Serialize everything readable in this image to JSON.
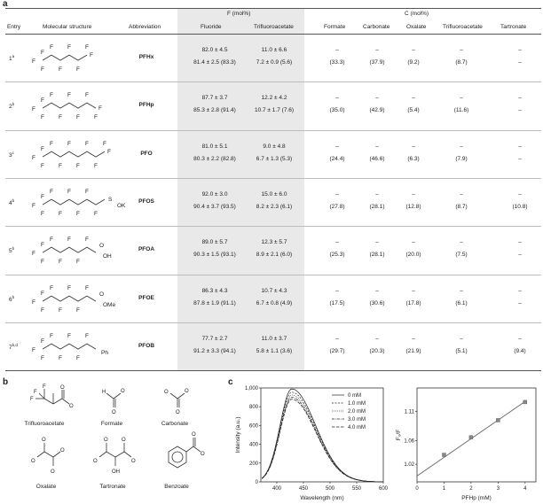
{
  "panels": {
    "a": "a",
    "b": "b",
    "c": "c"
  },
  "table": {
    "headers": {
      "entry": "Entry",
      "structure": "Molecular structure",
      "abbreviation": "Abbreviation",
      "group_f": "F (mol%)",
      "group_c": "C (mol%)",
      "f_cols": [
        "Fluoride",
        "Trifluoroacetate"
      ],
      "c_cols": [
        "Formate",
        "Carbonate",
        "Oxalate",
        "Trifluoroacetate",
        "Tartronate"
      ]
    },
    "rows": [
      {
        "entry": "1",
        "sup": "a",
        "abbr": "PFHx",
        "tail": "F",
        "chain": 6,
        "f1": [
          "82.0 ± 4.5",
          "81.4 ± 2.5 (83.3)"
        ],
        "f2": [
          "11.0 ± 6.6",
          "7.2 ± 0.9 (5.6)"
        ],
        "c": [
          [
            "–",
            "(33.3)"
          ],
          [
            "–",
            "(37.9)"
          ],
          [
            "–",
            "(9.2)"
          ],
          [
            "–",
            "(8.7)"
          ],
          [
            "–",
            "–"
          ]
        ]
      },
      {
        "entry": "2",
        "sup": "b",
        "abbr": "PFHp",
        "tail": "F",
        "chain": 7,
        "f1": [
          "87.7 ± 3.7",
          "85.3 ± 2.8 (91.4)"
        ],
        "f2": [
          "12.2 ± 4.2",
          "10.7 ± 1.7 (7.6)"
        ],
        "c": [
          [
            "–",
            "(35.0)"
          ],
          [
            "–",
            "(42.9)"
          ],
          [
            "–",
            "(5.4)"
          ],
          [
            "–",
            "(11.6)"
          ],
          [
            "–",
            "–"
          ]
        ]
      },
      {
        "entry": "3",
        "sup": "c",
        "abbr": "PFO",
        "tail": "F",
        "chain": 8,
        "f1": [
          "81.0 ± 5.1",
          "80.3 ± 2.2 (82.8)"
        ],
        "f2": [
          "9.0 ± 4.8",
          "6.7 ± 1.3 (5.3)"
        ],
        "c": [
          [
            "–",
            "(24.4)"
          ],
          [
            "–",
            "(46.6)"
          ],
          [
            "–",
            "(6.3)"
          ],
          [
            "–",
            "(7.9)"
          ],
          [
            "–",
            "–"
          ]
        ]
      },
      {
        "entry": "4",
        "sup": "b",
        "abbr": "PFOS",
        "tail": "SO3K",
        "chain": 8,
        "f1": [
          "92.0 ± 3.0",
          "90.4 ± 3.7 (93.5)"
        ],
        "f2": [
          "15.0 ± 6.0",
          "8.2 ± 2.3 (6.1)"
        ],
        "c": [
          [
            "–",
            "(27.8)"
          ],
          [
            "–",
            "(28.1)"
          ],
          [
            "–",
            "(12.8)"
          ],
          [
            "–",
            "(8.7)"
          ],
          [
            "–",
            "(10.8)"
          ]
        ]
      },
      {
        "entry": "5",
        "sup": "b",
        "abbr": "PFOA",
        "tail": "COOH",
        "chain": 7,
        "f1": [
          "89.0 ± 5.7",
          "90.3 ± 1.5 (93.1)"
        ],
        "f2": [
          "12.3 ± 5.7",
          "8.9 ± 2.1 (6.0)"
        ],
        "c": [
          [
            "–",
            "(25.3)"
          ],
          [
            "–",
            "(28.1)"
          ],
          [
            "–",
            "(20.0)"
          ],
          [
            "–",
            "(7.5)"
          ],
          [
            "–",
            "–"
          ]
        ]
      },
      {
        "entry": "6",
        "sup": "b",
        "abbr": "PFOE",
        "tail": "COOMe",
        "chain": 7,
        "f1": [
          "86.3 ± 4.3",
          "87.8 ± 1.9 (91.1)"
        ],
        "f2": [
          "10.7 ± 4.3",
          "6.7 ± 0.8 (4.9)"
        ],
        "c": [
          [
            "–",
            "(17.5)"
          ],
          [
            "–",
            "(30.6)"
          ],
          [
            "–",
            "(17.8)"
          ],
          [
            "–",
            "(6.1)"
          ],
          [
            "–",
            "–"
          ]
        ]
      },
      {
        "entry": "7",
        "sup": "b,d",
        "abbr": "PFOB",
        "tail": "Ph",
        "chain": 7,
        "f1": [
          "77.7 ± 2.7",
          "91.2 ± 3.3 (94.1)"
        ],
        "f2": [
          "11.0 ± 3.7",
          "5.8 ± 1.1 (3.6)"
        ],
        "c": [
          [
            "–",
            "(29.7)"
          ],
          [
            "–",
            "(20.3)"
          ],
          [
            "–",
            "(21.9)"
          ],
          [
            "–",
            "(5.1)"
          ],
          [
            "–",
            "(9.4)"
          ]
        ]
      }
    ]
  },
  "structures": {
    "labels": [
      "Trifluoroacetate",
      "Formate",
      "Carbonate",
      "Oxalate",
      "Tartronate",
      "Benzoate"
    ],
    "atoms": {
      "F": "F",
      "O": "O",
      "OH": "OH",
      "H": "H",
      "minus": "−",
      "K": "OK",
      "S": "S",
      "Me": "OMe",
      "Ph": "Ph"
    }
  },
  "chart_data": [
    {
      "type": "line",
      "title": "",
      "xlabel": "Wavelength (nm)",
      "ylabel": "Intensity (a.u.)",
      "xlim": [
        370,
        600
      ],
      "ylim": [
        0,
        1000
      ],
      "xticks": [
        400,
        450,
        500,
        550,
        600
      ],
      "yticks": [
        0,
        200,
        400,
        600,
        800,
        1000
      ],
      "ytick_labels": [
        "0",
        "200",
        "400",
        "600",
        "800",
        "1,000"
      ],
      "legend_position": "top-right",
      "series": [
        {
          "name": "0 mM",
          "peak": 990,
          "style": "solid"
        },
        {
          "name": "1.0 mM",
          "peak": 955,
          "style": "dash"
        },
        {
          "name": "2.0 mM",
          "peak": 925,
          "style": "dot"
        },
        {
          "name": "3.0 mM",
          "peak": 900,
          "style": "dashdot"
        },
        {
          "name": "4.0 mM",
          "peak": 880,
          "style": "longdash"
        }
      ],
      "peak_wavelength": 428
    },
    {
      "type": "scatter",
      "title": "",
      "xlabel": "PFHp (mM)",
      "ylabel": "F₀/F",
      "xlim": [
        0,
        4.4
      ],
      "ylim": [
        0.99,
        1.15
      ],
      "xticks": [
        0,
        1,
        2,
        3,
        4
      ],
      "yticks": [
        1.02,
        1.06,
        1.11
      ],
      "ytick_labels": [
        "1.02",
        "1.06",
        "1.11"
      ],
      "x": [
        1,
        2,
        3,
        4
      ],
      "y": [
        1.036,
        1.066,
        1.095,
        1.126
      ],
      "fit_line": {
        "x": [
          0,
          4
        ],
        "y": [
          1.0,
          1.127
        ]
      }
    }
  ]
}
